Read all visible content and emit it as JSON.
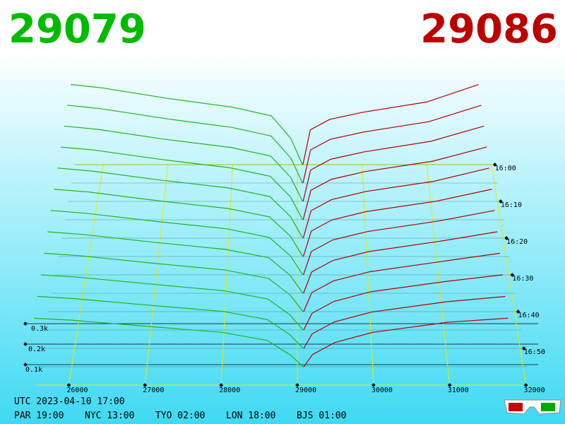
{
  "chart_data": {
    "type": "depth3d",
    "bid": 29079,
    "ask": 29086,
    "bid_color": "#1db51d",
    "ask_color": "#b00000",
    "xlim": [
      25560,
      32050
    ],
    "xticks": [
      26000,
      27000,
      28000,
      29000,
      30000,
      31000,
      32000
    ],
    "ylim": [
      0,
      500
    ],
    "yticks": [
      {
        "value": 100,
        "label": "0.1k"
      },
      {
        "value": 200,
        "label": "0.2k"
      },
      {
        "value": 300,
        "label": "0.3k"
      }
    ],
    "time_ticks": [
      "16:00",
      "16:10",
      "16:20",
      "16:30",
      "16:40",
      "16:50"
    ],
    "timestamp": "UTC 2023-04-10 17:00",
    "clocks": [
      "PAR 19:00",
      "NYC 13:00",
      "TYO 02:00",
      "LON 18:00",
      "BJS 01:00"
    ],
    "bid_prices": [
      25500,
      26000,
      27000,
      28000,
      28600,
      28900
    ],
    "ask_prices": [
      29200,
      29500,
      30000,
      31000,
      31800
    ],
    "snapshots": [
      {
        "time": "16:00",
        "bids": [
          460,
          440,
          380,
          330,
          280,
          150
        ],
        "asks": [
          200,
          260,
          300,
          360,
          460
        ]
      },
      {
        "time": "16:05",
        "bids": [
          440,
          421,
          364,
          315,
          266,
          142
        ],
        "asks": [
          187,
          247,
          288,
          347,
          440
        ]
      },
      {
        "time": "16:10",
        "bids": [
          420,
          402,
          347,
          301,
          253,
          134
        ],
        "asks": [
          175,
          235,
          276,
          335,
          420
        ]
      },
      {
        "time": "16:15",
        "bids": [
          400,
          383,
          331,
          286,
          239,
          125
        ],
        "asks": [
          162,
          222,
          265,
          322,
          400
        ]
      },
      {
        "time": "16:20",
        "bids": [
          380,
          364,
          315,
          272,
          225,
          117
        ],
        "asks": [
          149,
          209,
          253,
          309,
          380
        ]
      },
      {
        "time": "16:25",
        "bids": [
          360,
          345,
          298,
          257,
          212,
          109
        ],
        "asks": [
          136,
          196,
          241,
          296,
          360
        ]
      },
      {
        "time": "16:30",
        "bids": [
          340,
          325,
          282,
          243,
          198,
          101
        ],
        "asks": [
          124,
          184,
          229,
          284,
          340
        ]
      },
      {
        "time": "16:35",
        "bids": [
          320,
          306,
          265,
          228,
          185,
          93
        ],
        "asks": [
          111,
          171,
          217,
          271,
          320
        ]
      },
      {
        "time": "16:40",
        "bids": [
          300,
          287,
          249,
          214,
          171,
          85
        ],
        "asks": [
          98,
          158,
          205,
          258,
          300
        ]
      },
      {
        "time": "16:45",
        "bids": [
          280,
          268,
          233,
          199,
          157,
          76
        ],
        "asks": [
          85,
          145,
          194,
          245,
          280
        ]
      },
      {
        "time": "16:50",
        "bids": [
          260,
          249,
          216,
          185,
          144,
          68
        ],
        "asks": [
          73,
          133,
          182,
          233,
          260
        ]
      },
      {
        "time": "16:55",
        "bids": [
          240,
          230,
          200,
          170,
          130,
          60
        ],
        "asks": [
          60,
          120,
          170,
          220,
          240
        ]
      }
    ]
  }
}
